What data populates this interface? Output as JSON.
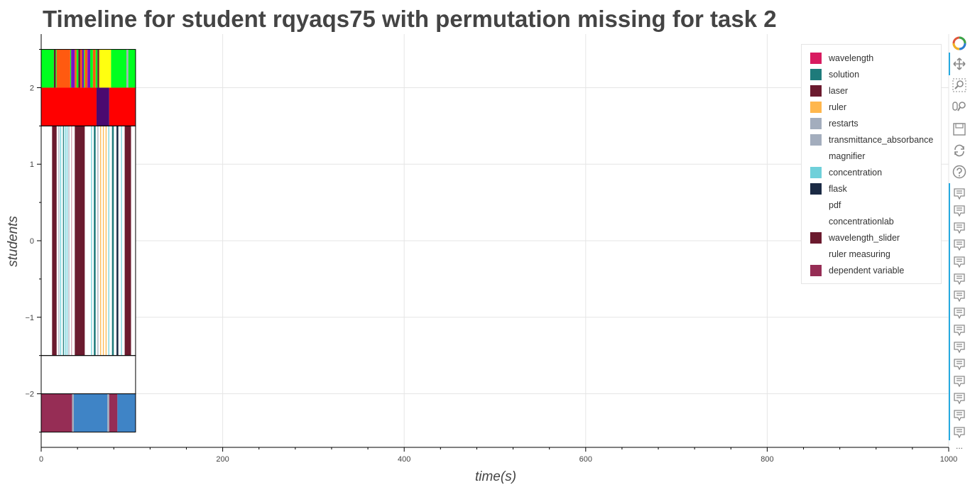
{
  "title": "Timeline for student rqyaqs75 with permutation missing for task 2",
  "chart_data": {
    "type": "timeline",
    "title": "Timeline for student rqyaqs75 with permutation missing for task 2",
    "xlabel": "time(s)",
    "ylabel": "students",
    "xlim": [
      0,
      1000
    ],
    "ylim": [
      -2.7,
      2.7
    ],
    "xticks": [
      0,
      200,
      400,
      600,
      800,
      1000
    ],
    "yticks": [
      -2,
      -1,
      0,
      1,
      2
    ],
    "ytick_labels": [
      "−2",
      "−1",
      "0",
      "1",
      "2"
    ],
    "grid": true,
    "legend_position": "top-right",
    "legend": [
      {
        "label": "wavelength",
        "color": "#d81b60"
      },
      {
        "label": "solution",
        "color": "#1e7b7b"
      },
      {
        "label": "laser",
        "color": "#6b1a2e"
      },
      {
        "label": "ruler",
        "color": "#ffb74d"
      },
      {
        "label": "restarts",
        "color": "#a3adbd"
      },
      {
        "label": "transmittance_absorbance",
        "color": "#a3adbd"
      },
      {
        "label": "magnifier",
        "color": "#ffffff"
      },
      {
        "label": "concentration",
        "color": "#6fd0da"
      },
      {
        "label": "flask",
        "color": "#1b2a44"
      },
      {
        "label": "pdf",
        "color": "#ffffff"
      },
      {
        "label": "concentrationlab",
        "color": "#ffffff"
      },
      {
        "label": "wavelength_slider",
        "color": "#6b1a2e"
      },
      {
        "label": "ruler measuring",
        "color": "#ffffff"
      },
      {
        "label": "dependent variable",
        "color": "#962d55"
      }
    ],
    "rows": [
      {
        "y": 2.25,
        "height": 0.5,
        "segments": [
          {
            "start": 0,
            "end": 14,
            "color": "#00ff20"
          },
          {
            "start": 14,
            "end": 16,
            "color": "#6b1a2e"
          },
          {
            "start": 16,
            "end": 17,
            "color": "#00ff20"
          },
          {
            "start": 17,
            "end": 32,
            "color": "#ff5a10"
          },
          {
            "start": 32,
            "end": 33,
            "color": "#00ff20"
          },
          {
            "start": 33,
            "end": 37,
            "color": "#7b10c8"
          },
          {
            "start": 37,
            "end": 39,
            "color": "#ff5a10"
          },
          {
            "start": 39,
            "end": 41,
            "color": "#00ff20"
          },
          {
            "start": 41,
            "end": 43,
            "color": "#6b1a2e"
          },
          {
            "start": 43,
            "end": 45,
            "color": "#ff5a10"
          },
          {
            "start": 45,
            "end": 47,
            "color": "#7b10c8"
          },
          {
            "start": 47,
            "end": 48,
            "color": "#00ff20"
          },
          {
            "start": 48,
            "end": 51,
            "color": "#ff5a10"
          },
          {
            "start": 51,
            "end": 54,
            "color": "#7b10c8"
          },
          {
            "start": 54,
            "end": 57,
            "color": "#00ff20"
          },
          {
            "start": 57,
            "end": 60,
            "color": "#ff5a10"
          },
          {
            "start": 60,
            "end": 62,
            "color": "#00ff20"
          },
          {
            "start": 62,
            "end": 64,
            "color": "#6b1a2e"
          },
          {
            "start": 64,
            "end": 77,
            "color": "#ffff10"
          },
          {
            "start": 77,
            "end": 94,
            "color": "#00ff20"
          },
          {
            "start": 94,
            "end": 96,
            "color": "#a3adbd"
          },
          {
            "start": 96,
            "end": 104,
            "color": "#00ff20"
          }
        ]
      },
      {
        "y": 1.75,
        "height": 0.5,
        "segments": [
          {
            "start": 0,
            "end": 61,
            "color": "#ff0000"
          },
          {
            "start": 61,
            "end": 75,
            "color": "#4a0a70"
          },
          {
            "start": 75,
            "end": 104,
            "color": "#ff0000"
          }
        ]
      },
      {
        "y": 0,
        "height": 3,
        "segments": [
          {
            "start": 12,
            "end": 17,
            "color": "#6b1a2e"
          },
          {
            "start": 19,
            "end": 20,
            "color": "#a3adbd"
          },
          {
            "start": 21,
            "end": 22,
            "color": "#6fd0da"
          },
          {
            "start": 24,
            "end": 25,
            "color": "#1e7b7b"
          },
          {
            "start": 26,
            "end": 27,
            "color": "#6fd0da"
          },
          {
            "start": 28,
            "end": 29,
            "color": "#6fd0da"
          },
          {
            "start": 30,
            "end": 31,
            "color": "#a3adbd"
          },
          {
            "start": 33,
            "end": 34,
            "color": "#d4a0b0"
          },
          {
            "start": 37,
            "end": 48,
            "color": "#6b1a2e"
          },
          {
            "start": 55,
            "end": 56,
            "color": "#6fd0da"
          },
          {
            "start": 58,
            "end": 60,
            "color": "#1e7b7b"
          },
          {
            "start": 62,
            "end": 63,
            "color": "#a3adbd"
          },
          {
            "start": 65,
            "end": 66,
            "color": "#ffb74d"
          },
          {
            "start": 68,
            "end": 69,
            "color": "#ffb74d"
          },
          {
            "start": 71,
            "end": 72,
            "color": "#ffb74d"
          },
          {
            "start": 74,
            "end": 75,
            "color": "#6fd0da"
          },
          {
            "start": 78,
            "end": 80,
            "color": "#1e7b7b"
          },
          {
            "start": 83,
            "end": 85,
            "color": "#1b2a44"
          },
          {
            "start": 88,
            "end": 89,
            "color": "#6fd0da"
          },
          {
            "start": 92,
            "end": 99,
            "color": "#6b1a2e"
          }
        ]
      },
      {
        "y": -2.25,
        "height": 0.5,
        "segments": [
          {
            "start": 0,
            "end": 34,
            "color": "#962d55"
          },
          {
            "start": 34,
            "end": 36,
            "color": "#a3adbd"
          },
          {
            "start": 36,
            "end": 73,
            "color": "#3f84c6"
          },
          {
            "start": 73,
            "end": 75,
            "color": "#a3adbd"
          },
          {
            "start": 75,
            "end": 84,
            "color": "#962d55"
          },
          {
            "start": 84,
            "end": 104,
            "color": "#3f84c6"
          }
        ]
      }
    ],
    "white_blocks": [
      {
        "y": 0,
        "height": 3,
        "start": 0,
        "end": 104
      },
      {
        "y": -1.75,
        "height": 0.5,
        "start": 0,
        "end": 104
      }
    ]
  },
  "toolbar": {
    "tools": [
      "bokeh-logo-icon",
      "pan-icon",
      "box-zoom-icon",
      "wheel-zoom-icon",
      "save-icon",
      "reset-icon",
      "help-icon"
    ],
    "hover_tools": 15,
    "more_label": "..."
  }
}
